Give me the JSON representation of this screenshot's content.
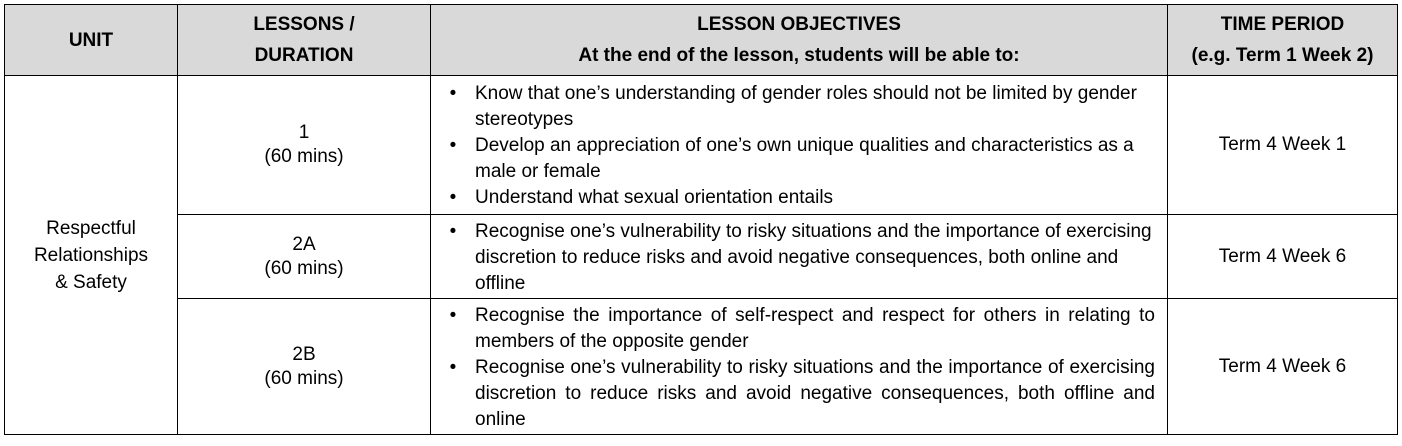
{
  "header": {
    "unit": "UNIT",
    "lessons_line1": "LESSONS /",
    "lessons_line2": "DURATION",
    "objectives_line1": "LESSON OBJECTIVES",
    "objectives_line2": "At the end of the lesson, students will be able to:",
    "time_line1": "TIME PERIOD",
    "time_line2": "(e.g. Term 1 Week 2)"
  },
  "unit": {
    "line1": "Respectful",
    "line2": "Relationships",
    "line3": "& Safety"
  },
  "rows": [
    {
      "lesson": "1",
      "duration": "(60 mins)",
      "objectives": [
        "Know that one’s understanding of gender roles should not be limited by gender stereotypes",
        "Develop an appreciation of one’s own unique qualities and characteristics as a male or female",
        "Understand what sexual orientation entails"
      ],
      "time": "Term 4 Week 1"
    },
    {
      "lesson": "2A",
      "duration": "(60 mins)",
      "objectives": [
        "Recognise one’s vulnerability to risky situations and the importance of exercising discretion to reduce risks and avoid negative consequences, both online and offline"
      ],
      "time": "Term 4 Week 6"
    },
    {
      "lesson": "2B",
      "duration": "(60 mins)",
      "objectives": [
        "Recognise the importance of self-respect and respect for others in relating to members of the opposite gender",
        "Recognise one’s vulnerability to risky situations and the importance of exercising discretion to reduce risks and avoid negative consequences, both offline and online"
      ],
      "time": "Term 4 Week 6"
    }
  ],
  "bullet_glyph": "•"
}
